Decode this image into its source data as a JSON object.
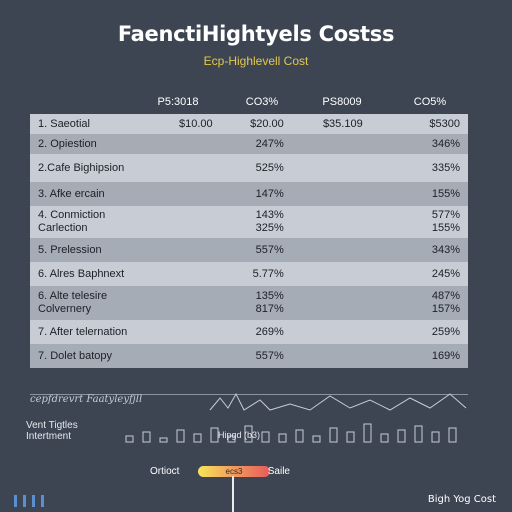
{
  "title": "FaenctiHightyels Costss",
  "subtitle": "Ecp-Highlevell Cost",
  "chart_data": {
    "type": "table",
    "columns": [
      "",
      "P5:3018",
      "CO3%",
      "PS8009",
      "CO5%"
    ],
    "rows": [
      {
        "label": "1. Saeotial",
        "c1": "$10.00",
        "c2": "$20.00",
        "c3": "$35.109",
        "c4": "$5300"
      },
      {
        "label": "2. Opiestion",
        "c1": "",
        "c2": "247%",
        "c3": "",
        "c4": "346%"
      },
      {
        "label": "2.Cafe Bighipsion",
        "c1": "",
        "c2": "525%",
        "c3": "",
        "c4": "335%"
      },
      {
        "label": "3. Afke ercain",
        "c1": "",
        "c2": "147%",
        "c3": "",
        "c4": "155%"
      },
      {
        "label": "4. Conmiction\nCarlection",
        "c1": "",
        "c2": "143%\n325%",
        "c3": "",
        "c4": "577%\n155%"
      },
      {
        "label": "5. Prelession",
        "c1": "",
        "c2": "557%",
        "c3": "",
        "c4": "343%"
      },
      {
        "label": "6. Alres Baphnext",
        "c1": "",
        "c2": "5.77%",
        "c3": "",
        "c4": "245%"
      },
      {
        "label": "6. Alte telesire\nColvernery",
        "c1": "",
        "c2": "135%\n817%",
        "c3": "",
        "c4": "487%\n157%"
      },
      {
        "label": "7. After telernation",
        "c1": "",
        "c2": "269%",
        "c3": "",
        "c4": "259%"
      },
      {
        "label": "7. Dolet batopy",
        "c1": "",
        "c2": "557%",
        "c3": "",
        "c4": "169%"
      }
    ]
  },
  "scribble_text": "cepfdrevrt Faatyleyfjll",
  "left_label": "Vent Tigtles\nIntertment",
  "mid_label": "Hipgd (b3)",
  "scale": {
    "low": "Ortioct",
    "pill": "ecs3",
    "high": "Saile"
  },
  "footer": "Bigh Yog Cost",
  "colors": {
    "background": "#3d4553",
    "title": "#ffffff",
    "subtitle": "#e3c84a",
    "row_light": "#c8ccd4",
    "row_dark": "#a6acb6"
  }
}
